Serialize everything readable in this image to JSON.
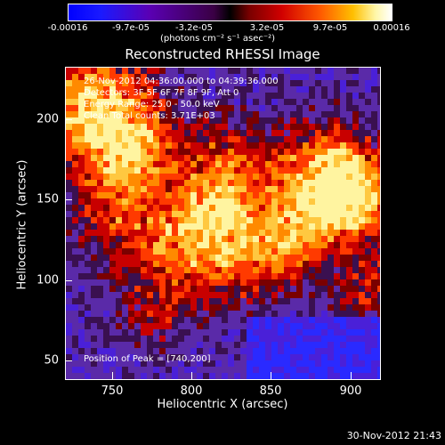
{
  "colorbar": {
    "ticks": [
      "-0.00016",
      "-9.7e-05",
      "-3.2e-05",
      "3.2e-05",
      "9.7e-05",
      "0.00016"
    ],
    "units": "(photons cm⁻² s⁻¹ asec⁻²)"
  },
  "title": "Reconstructed RHESSI Image",
  "info": {
    "time": "26-Nov-2012 04:36:00.000 to 04:39:36.000",
    "detectors": "Detectors: 3F 5F 6F 7F 8F 9F, Att 0",
    "energy": "Energy Range: 25.0 - 50.0 keV",
    "counts": "Clean     Total counts: 3.71E+03"
  },
  "peak": "Position of Peak = [740,200]",
  "axes": {
    "xlabel": "Heliocentric X (arcsec)",
    "ylabel": "Heliocentric Y (arcsec)",
    "xticks": [
      "750",
      "800",
      "850",
      "900"
    ],
    "yticks": [
      "200",
      "150",
      "100",
      "50"
    ]
  },
  "footer": "30-Nov-2012 21:43",
  "colors": {
    "background": "#000000",
    "negative": "#2020ff",
    "positive_low": "#c00000",
    "positive_high": "#ffff80"
  }
}
